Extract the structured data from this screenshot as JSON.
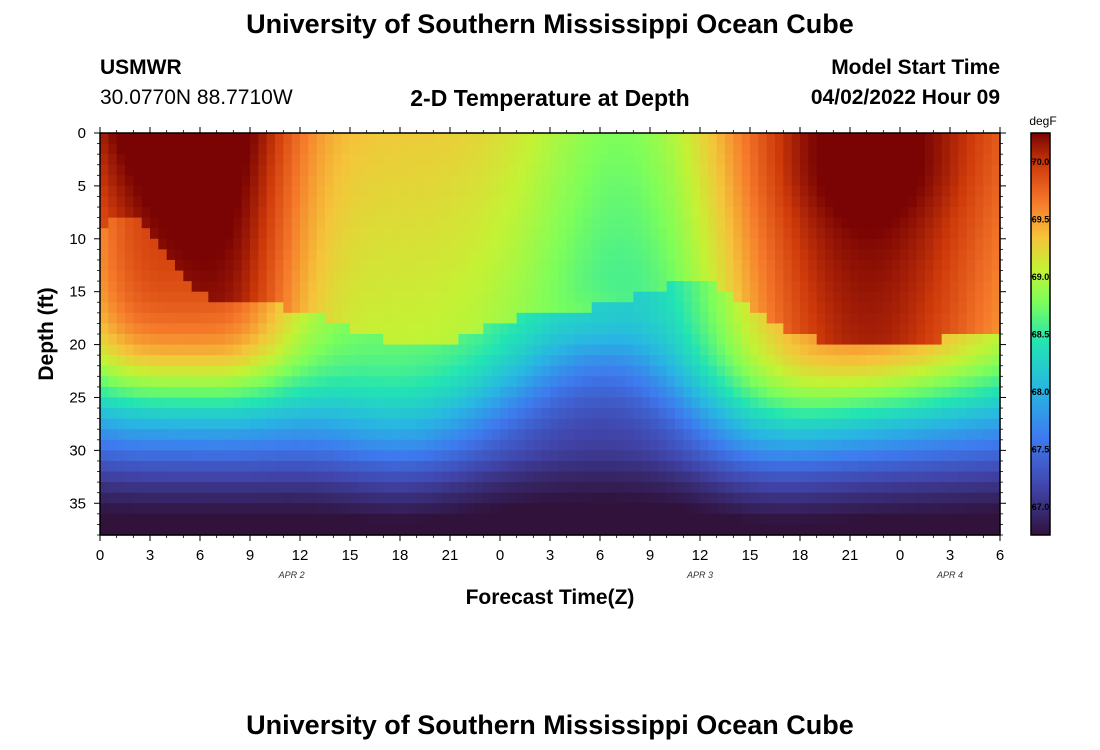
{
  "header": {
    "title_top": "University of Southern Mississippi Ocean Cube",
    "station": "USMWR",
    "coords": "30.0770N  88.7710W",
    "plot_title": "2-D Temperature at Depth",
    "model_start_label": "Model Start Time",
    "model_start_value": "04/02/2022 Hour 09",
    "title_bottom": "University of Southern Mississippi Ocean Cube"
  },
  "chart_data": {
    "type": "heatmap",
    "title": "2-D Temperature at Depth",
    "xlabel": "Forecast Time(Z)",
    "ylabel": "Depth (ft)",
    "x_hours_range": [
      0,
      54
    ],
    "y_range": [
      0,
      38
    ],
    "x_ticks": [
      "0",
      "3",
      "6",
      "9",
      "12",
      "15",
      "18",
      "21",
      "0",
      "3",
      "6",
      "9",
      "12",
      "15",
      "18",
      "21",
      "0",
      "3",
      "6"
    ],
    "y_ticks": [
      "0",
      "5",
      "10",
      "15",
      "20",
      "25",
      "30",
      "35"
    ],
    "y_tick_values": [
      0,
      5,
      10,
      15,
      20,
      25,
      30,
      35
    ],
    "date_labels": [
      {
        "text": "APR 2",
        "hour": 11.5
      },
      {
        "text": "APR 3",
        "hour": 36
      },
      {
        "text": "APR 4",
        "hour": 51
      }
    ],
    "colorbar": {
      "unit": "degF",
      "min": 66.75,
      "max": 70.25,
      "ticks": [
        "67.0",
        "67.5",
        "68.0",
        "68.5",
        "69.0",
        "69.5",
        "70.0"
      ],
      "tick_values": [
        67.0,
        67.5,
        68.0,
        68.5,
        69.0,
        69.5,
        70.0
      ]
    },
    "grid": false
  }
}
